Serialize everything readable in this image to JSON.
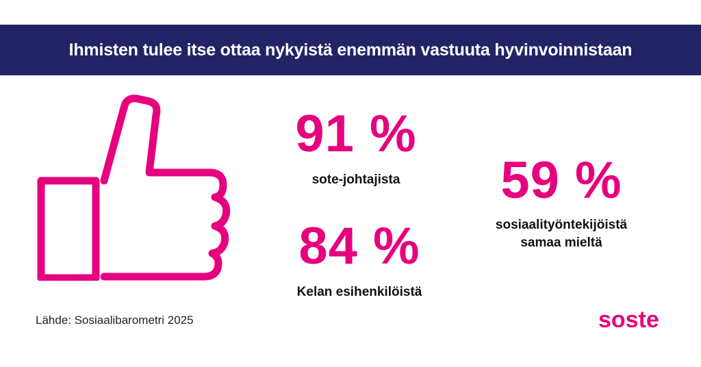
{
  "header": {
    "title": "Ihmisten tulee itse ottaa nykyistä enemmän vastuuta hyvinvoinnistaan"
  },
  "stats": [
    {
      "value": "91 %",
      "label": "sote-johtajista"
    },
    {
      "value": "84 %",
      "label": "Kelan esihenkilöistä"
    },
    {
      "value": "59 %",
      "label_lines": [
        "sosiaalityöntekijöistä",
        "samaa mieltä"
      ]
    }
  ],
  "footer": {
    "source": "Lähde: Sosiaalibarometri 2025",
    "logo": "SOSTE"
  },
  "icons": {
    "illustration": "thumbs-up-icon"
  },
  "colors": {
    "accent": "#e6007e",
    "banner": "#232466",
    "text": "#111111"
  }
}
